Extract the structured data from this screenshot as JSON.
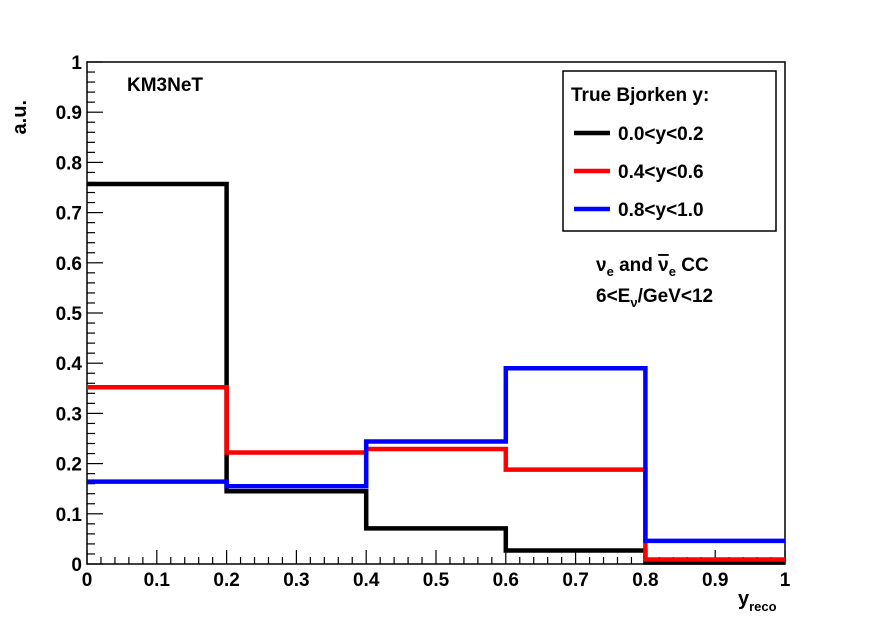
{
  "chart_data": {
    "type": "line",
    "subtype": "step-histogram",
    "experiment_label": "KM3NeT",
    "xlabel": "y",
    "xlabel_subscript": "reco",
    "ylabel": "a.u.",
    "xlim": [
      0,
      1
    ],
    "ylim": [
      0,
      1
    ],
    "x_ticks": [
      "0",
      "0.1",
      "0.2",
      "0.3",
      "0.4",
      "0.5",
      "0.6",
      "0.7",
      "0.8",
      "0.9",
      "1"
    ],
    "y_ticks": [
      "0",
      "0.1",
      "0.2",
      "0.3",
      "0.4",
      "0.5",
      "0.6",
      "0.7",
      "0.8",
      "0.9",
      "1"
    ],
    "bin_edges": [
      0,
      0.2,
      0.4,
      0.6,
      0.8,
      1.0
    ],
    "grid": false,
    "legend": {
      "title": "True Bjorken y:",
      "placement": "top-right"
    },
    "series": [
      {
        "name": "0.0<y<0.2",
        "color": "#000000",
        "values": [
          0.757,
          0.145,
          0.071,
          0.027,
          0.003
        ]
      },
      {
        "name": "0.4<y<0.6",
        "color": "#ff0000",
        "values": [
          0.352,
          0.222,
          0.229,
          0.188,
          0.009
        ]
      },
      {
        "name": "0.8<y<1.0",
        "color": "#0000ff",
        "values": [
          0.164,
          0.155,
          0.244,
          0.39,
          0.046
        ]
      }
    ],
    "annotation": {
      "line1_nu": "ν",
      "line1_sub_e": "e",
      "line1_and": " and ",
      "line1_nubar": "ν",
      "line1_sub_e2": "e",
      "line1_cc": " CC",
      "line2_pre": "6<E",
      "line2_sub": "ν",
      "line2_post": "/GeV<12"
    }
  }
}
